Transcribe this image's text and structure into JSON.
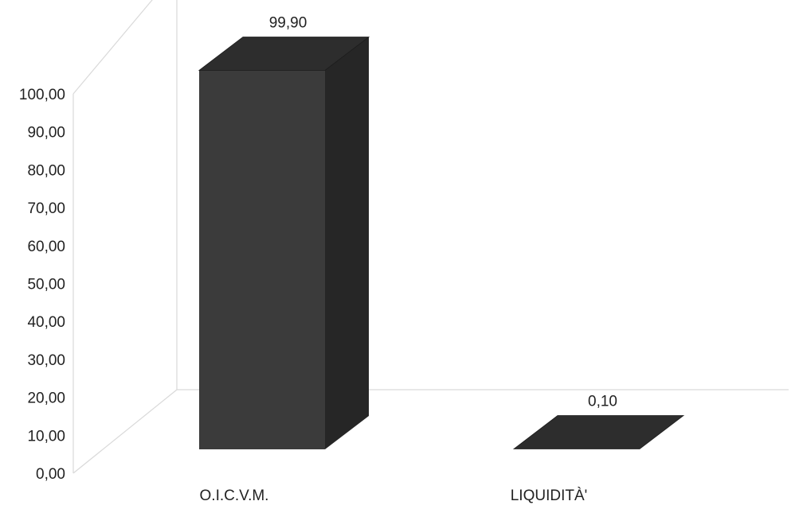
{
  "chart_data": {
    "type": "bar",
    "style": "3d-column",
    "categories": [
      "O.I.C.V.M.",
      "LIQUIDITÀ'"
    ],
    "values": [
      99.9,
      0.1
    ],
    "value_labels": [
      "99,90",
      "0,10"
    ],
    "ylim": [
      0,
      100
    ],
    "y_tick_values": [
      0,
      10,
      20,
      30,
      40,
      50,
      60,
      70,
      80,
      90,
      100
    ],
    "y_tick_labels": [
      "0,00",
      "10,00",
      "20,00",
      "30,00",
      "40,00",
      "50,00",
      "60,00",
      "70,00",
      "80,00",
      "90,00",
      "100,00"
    ],
    "grid": false,
    "legend": "none",
    "colors": {
      "bar_front": "#3b3b3b",
      "bar_top": "#2d2d2d",
      "bar_side": "#262626",
      "wall_line": "#d9d9d9",
      "text": "#222222"
    }
  }
}
